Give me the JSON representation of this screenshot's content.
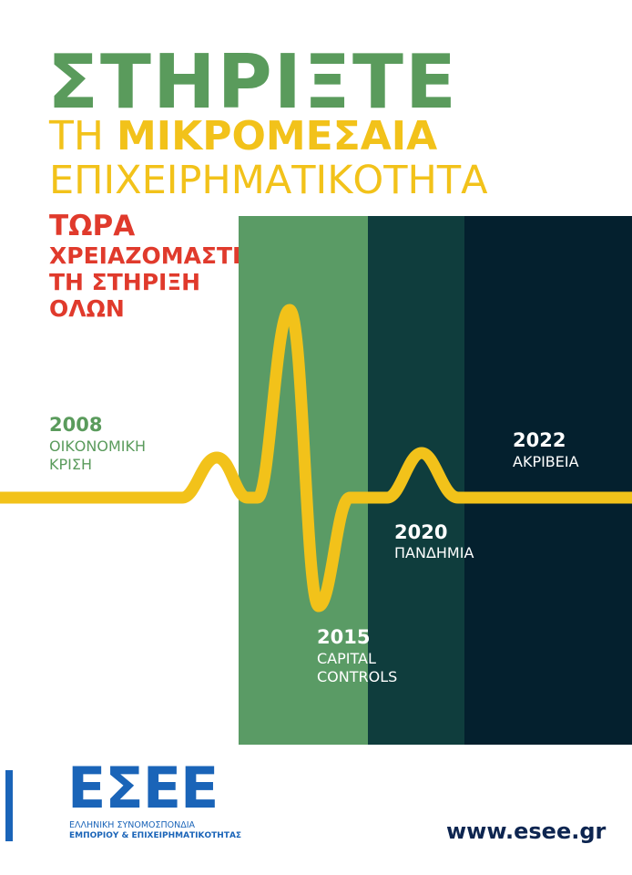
{
  "headline": {
    "line1": "ΣΤΗΡΙΞΤΕ",
    "line2_light": "ΤΗ ",
    "line2_bold": "ΜΙΚΡΟΜΕΣΑΙΑ",
    "line3": "ΕΠΙΧΕΙΡΗΜΑΤΙΚΟΤΗΤΑ"
  },
  "subhead": {
    "line1": "ΤΩΡΑ",
    "line2": "ΧΡΕΙΑΖΟΜΑΣΤΕ",
    "line3": "ΤΗ ΣΤΗΡΙΞΗ",
    "line4": "ΟΛΩΝ"
  },
  "timeline": [
    {
      "year": "2008",
      "desc": [
        "ΟΙΚΟΝΟΜΙΚΗ",
        "ΚΡΙΣΗ"
      ]
    },
    {
      "year": "2015",
      "desc": [
        "CAPITAL",
        "CONTROLS"
      ]
    },
    {
      "year": "2020",
      "desc": [
        "ΠΑΝΔΗΜΙΑ"
      ]
    },
    {
      "year": "2022",
      "desc": [
        "ΑΚΡΙΒΕΙΑ"
      ]
    }
  ],
  "colors": {
    "green": "#5a9b5c",
    "yellow": "#f2c21a",
    "red": "#e03a2c",
    "panel_green": "#5a9b65",
    "panel_teal": "#0f3d3d",
    "panel_navy": "#04202e",
    "brand_blue": "#1a64b8"
  },
  "logo": {
    "name": "ΕΣΕΕ",
    "sub1": "ΕΛΛΗΝΙΚΗ ΣΥΝΟΜΟΣΠΟΝΔΙΑ",
    "sub2": "ΕΜΠΟΡΙΟΥ & ΕΠΙΧΕΙΡΗΜΑΤΙΚΟΤΗΤΑΣ"
  },
  "website": "www.esee.gr"
}
